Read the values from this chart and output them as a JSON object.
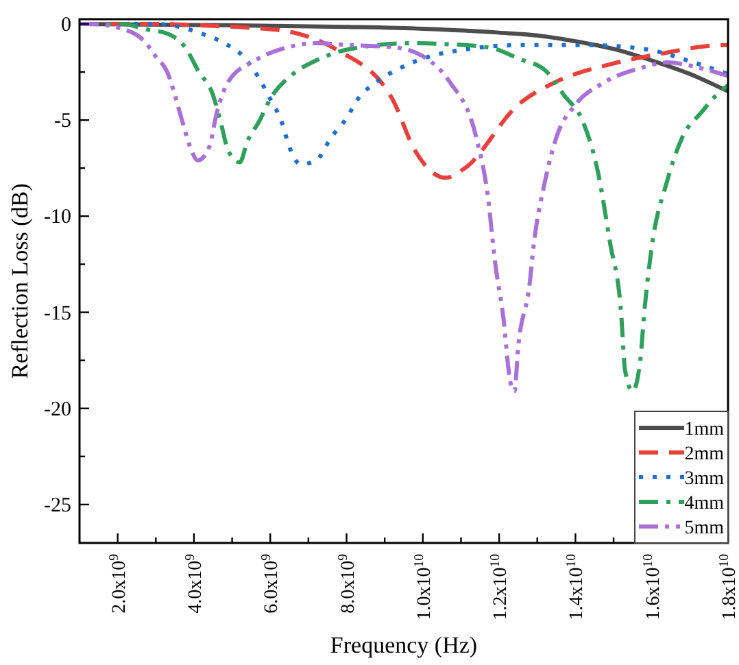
{
  "chart_data": {
    "type": "line",
    "xlabel": "Frequency (Hz)",
    "ylabel": "Reflection Loss (dB)",
    "xlim": [
      1000000000.0,
      18000000000.0
    ],
    "ylim": [
      -27,
      0.25
    ],
    "xticks": [
      {
        "value": 2000000000.0,
        "label": "2.0x10$^{9}$"
      },
      {
        "value": 3000000000.0,
        "label": null
      },
      {
        "value": 4000000000.0,
        "label": "4.0x10$^{9}$"
      },
      {
        "value": 5000000000.0,
        "label": null
      },
      {
        "value": 6000000000.0,
        "label": "6.0x10$^{9}$"
      },
      {
        "value": 7000000000.0,
        "label": null
      },
      {
        "value": 8000000000.0,
        "label": "8.0x10$^{9}$"
      },
      {
        "value": 9000000000.0,
        "label": null
      },
      {
        "value": 10000000000.0,
        "label": "1.0x10$^{10}$"
      },
      {
        "value": 11000000000.0,
        "label": null
      },
      {
        "value": 12000000000.0,
        "label": "1.2x10$^{10}$"
      },
      {
        "value": 13000000000.0,
        "label": null
      },
      {
        "value": 14000000000.0,
        "label": "1.4x10$^{10}$"
      },
      {
        "value": 15000000000.0,
        "label": null
      },
      {
        "value": 16000000000.0,
        "label": "1.6x10$^{10}$"
      },
      {
        "value": 17000000000.0,
        "label": null
      },
      {
        "value": 18000000000.0,
        "label": "1.8x10$^{10}$"
      }
    ],
    "yticks": [
      0,
      {
        "value": -2.5,
        "label": null
      },
      -5,
      {
        "value": -7.5,
        "label": null
      },
      -10,
      {
        "value": -12.5,
        "label": null
      },
      -15,
      {
        "value": -17.5,
        "label": null
      },
      -20,
      {
        "value": -22.5,
        "label": null
      },
      -25
    ],
    "grid": false,
    "legend": "bottom right",
    "marker": "none",
    "series": [
      {
        "name": "1mm",
        "color": "#4d4d4d",
        "line_style": "solid",
        "x": [
          1000000000.0,
          4000000000.0,
          8000000000.0,
          10000000000.0,
          12000000000.0,
          13000000000.0,
          14000000000.0,
          15000000000.0,
          16000000000.0,
          17000000000.0,
          18000000000.0
        ],
        "values": [
          0,
          -0.05,
          -0.15,
          -0.25,
          -0.45,
          -0.6,
          -0.9,
          -1.3,
          -1.9,
          -2.6,
          -3.5
        ]
      },
      {
        "name": "2mm",
        "color": "#e8413c",
        "line_style": "dashed",
        "x": [
          1000000000.0,
          3000000000.0,
          4500000000.0,
          5500000000.0,
          6500000000.0,
          6900000000.0,
          7800000000.0,
          9200000000.0,
          9800000000.0,
          10600000000.0,
          11100000000.0,
          12500000000.0,
          13500000000.0,
          14900000000.0,
          16100000000.0,
          17900000000.0,
          18000000000.0
        ],
        "values": [
          0,
          0,
          -0.1,
          -0.2,
          -0.4,
          -0.6,
          -1.4,
          -3.9,
          -6.6,
          -8,
          -7.5,
          -4.2,
          -3,
          -2.1,
          -1.6,
          -1.1,
          -1.1
        ]
      },
      {
        "name": "3mm",
        "color": "#1f6fd0",
        "line_style": "dotted",
        "x": [
          1000000000.0,
          2000000000.0,
          3000000000.0,
          4200000000.0,
          4800000000.0,
          5300000000.0,
          5700000000.0,
          6000000000.0,
          6300000000.0,
          6500000000.0,
          6800000000.0,
          7200000000.0,
          7600000000.0,
          8000000000.0,
          8300000000.0,
          8800000000.0,
          9400000000.0,
          10000000000.0,
          11200000000.0,
          12500000000.0,
          14300000000.0,
          15800000000.0,
          17100000000.0,
          18000000000.0
        ],
        "values": [
          0,
          0,
          0,
          -0.5,
          -1,
          -1.7,
          -2.8,
          -3.9,
          -5.1,
          -6.4,
          -7.3,
          -7.1,
          -5.9,
          -4.9,
          -3.9,
          -3,
          -2.3,
          -1.8,
          -1.3,
          -1.1,
          -1.1,
          -1.3,
          -2,
          -2.6
        ]
      },
      {
        "name": "4mm",
        "color": "#2ea05a",
        "line_style": "dashdot",
        "x": [
          1000000000.0,
          2100000000.0,
          2800000000.0,
          3300000000.0,
          3800000000.0,
          4100000000.0,
          4500000000.0,
          4700000000.0,
          4900000000.0,
          5200000000.0,
          5400000000.0,
          5700000000.0,
          6000000000.0,
          6600000000.0,
          7200000000.0,
          8100000000.0,
          9700000000.0,
          11100000000.0,
          11900000000.0,
          12500000000.0,
          13200000000.0,
          13700000000.0,
          14200000000.0,
          14600000000.0,
          14900000000.0,
          15200000000.0,
          15300000000.0,
          15500000000.0,
          15700000000.0,
          15800000000.0,
          16000000000.0,
          16400000000.0,
          16800000000.0,
          17300000000.0,
          17800000000.0,
          18000000000.0
        ],
        "values": [
          0,
          0,
          -0.3,
          -0.5,
          -1.3,
          -2.4,
          -3.7,
          -5.1,
          -6.6,
          -7.2,
          -6.1,
          -5.1,
          -3.9,
          -2.6,
          -1.9,
          -1.3,
          -1,
          -1.1,
          -1.3,
          -1.8,
          -2.4,
          -3.7,
          -5.1,
          -7.8,
          -11.3,
          -15.1,
          -18,
          -19.1,
          -17.5,
          -15.1,
          -11.6,
          -8.2,
          -5.9,
          -4.6,
          -3.5,
          -3.2
        ]
      },
      {
        "name": "5mm",
        "color": "#a970d8",
        "line_style": "dashdotdot",
        "x": [
          1000000000.0,
          1300000000.0,
          2200000000.0,
          2700000000.0,
          3000000000.0,
          3300000000.0,
          3500000000.0,
          3700000000.0,
          3900000000.0,
          4100000000.0,
          4400000000.0,
          4600000000.0,
          4900000000.0,
          5600000000.0,
          6300000000.0,
          7200000000.0,
          8100000000.0,
          9200000000.0,
          10100000000.0,
          10700000000.0,
          11400000000.0,
          11700000000.0,
          11900000000.0,
          12100000000.0,
          12300000000.0,
          12400000000.0,
          12500000000.0,
          12800000000.0,
          12900000000.0,
          13200000000.0,
          13500000000.0,
          14000000000.0,
          14700000000.0,
          15700000000.0,
          16400000000.0,
          17300000000.0,
          18000000000.0
        ],
        "values": [
          0,
          0,
          -0.3,
          -0.9,
          -1.7,
          -2.5,
          -3.7,
          -5.1,
          -6.4,
          -7.1,
          -6.4,
          -4.6,
          -3,
          -1.9,
          -1.3,
          -1,
          -1.1,
          -1.2,
          -1.8,
          -3,
          -5.9,
          -8.9,
          -12.5,
          -15.1,
          -18.7,
          -19.1,
          -16.8,
          -13.5,
          -11.6,
          -8.2,
          -5.9,
          -4.2,
          -3.1,
          -2.3,
          -2,
          -2.3,
          -2.7
        ]
      }
    ]
  }
}
